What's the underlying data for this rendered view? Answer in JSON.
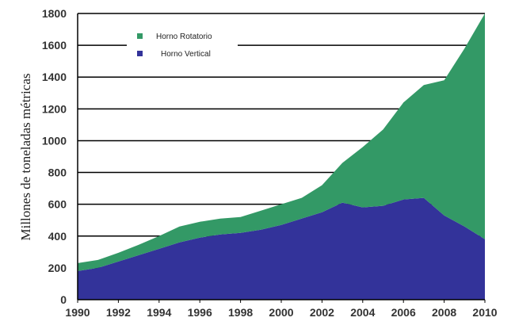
{
  "chart_data": {
    "type": "area",
    "stacked": true,
    "title": "",
    "xlabel": "",
    "ylabel": "Millones de toneladas métricas",
    "xlim": [
      1990,
      2010
    ],
    "ylim": [
      0,
      1800
    ],
    "x_ticks": [
      1990,
      1992,
      1994,
      1996,
      1998,
      2000,
      2002,
      2004,
      2006,
      2008,
      2010
    ],
    "y_ticks": [
      0,
      200,
      400,
      600,
      800,
      1000,
      1200,
      1400,
      1600,
      1800
    ],
    "grid": "horizontal",
    "legend_position": "top-left",
    "x": [
      1990,
      1991,
      1992,
      1993,
      1994,
      1995,
      1996,
      1997,
      1998,
      1999,
      2000,
      2001,
      2002,
      2003,
      2004,
      2005,
      2006,
      2007,
      2008,
      2009,
      2010
    ],
    "series": [
      {
        "name": "Horno Vertical",
        "color": "#33339a",
        "values": [
          180,
          200,
          240,
          280,
          320,
          360,
          390,
          410,
          420,
          440,
          470,
          510,
          550,
          610,
          580,
          590,
          630,
          640,
          530,
          460,
          380
        ]
      },
      {
        "name": "Horno Rotatorio",
        "color": "#339966",
        "values": [
          50,
          50,
          55,
          65,
          80,
          100,
          100,
          100,
          100,
          120,
          130,
          130,
          170,
          250,
          380,
          480,
          610,
          710,
          850,
          1120,
          1420
        ]
      }
    ]
  }
}
